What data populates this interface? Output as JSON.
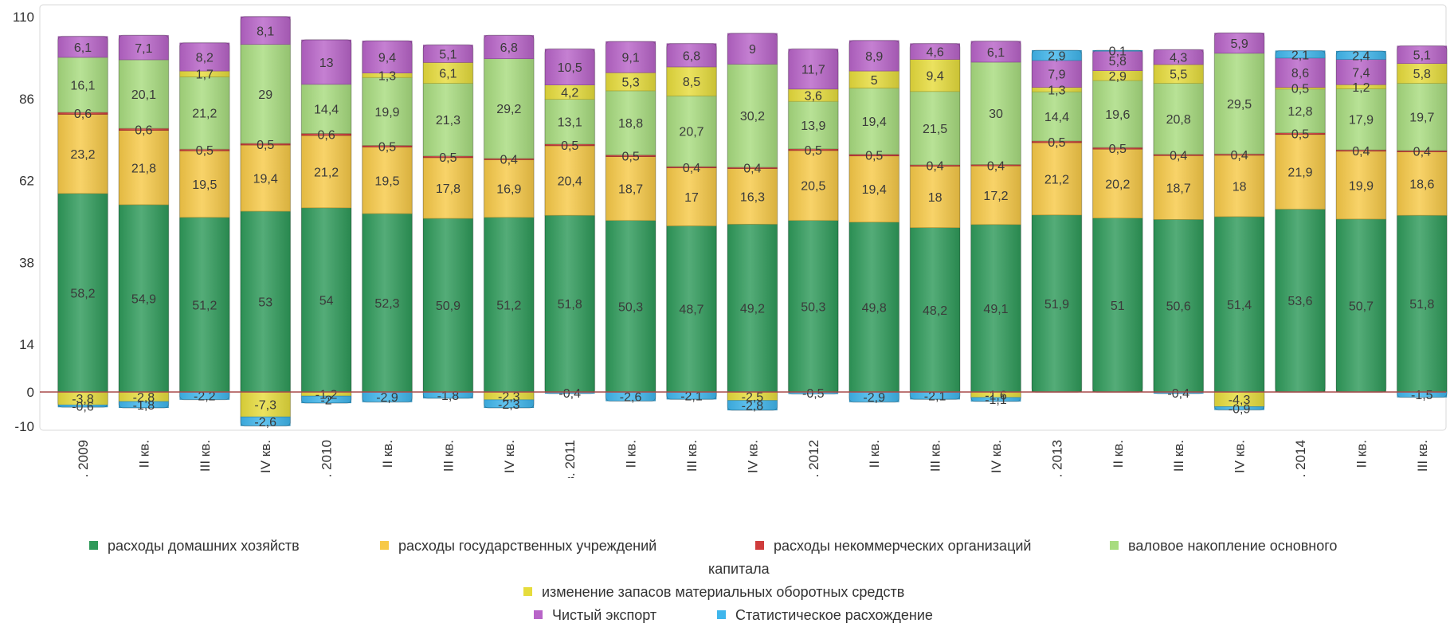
{
  "chart_data": {
    "type": "bar",
    "stacked": true,
    "categories": [
      "I кв. 2009",
      "II кв.",
      "III кв.",
      "IV кв.",
      "I кв. 2010",
      "II кв.",
      "III кв.",
      "IV кв.",
      "I кв. 2011",
      "II кв.",
      "III кв.",
      "IV кв.",
      "I кв. 2012",
      "II кв.",
      "III кв.",
      "IV кв.",
      "I кв. 2013",
      "II кв.",
      "III кв.",
      "IV кв.",
      "I кв. 2014",
      "II кв.",
      "III кв."
    ],
    "ylim": [
      -10,
      110
    ],
    "yticks": [
      -10,
      0,
      14,
      38,
      62,
      86,
      110
    ],
    "grid": false,
    "legend_position": "bottom",
    "series": [
      {
        "name": "расходы домашних хозяйств",
        "color": "#2f9a5a",
        "values": [
          58.2,
          54.9,
          51.2,
          53,
          54,
          52.3,
          50.9,
          51.2,
          51.8,
          50.3,
          48.7,
          49.2,
          50.3,
          49.8,
          48.2,
          49.1,
          51.9,
          51,
          50.6,
          51.4,
          53.6,
          50.7,
          51.8
        ]
      },
      {
        "name": "расходы государственных учреждений",
        "color": "#f7c948",
        "values": [
          23.2,
          21.8,
          19.5,
          19.4,
          21.2,
          19.5,
          17.8,
          16.9,
          20.4,
          18.7,
          17,
          16.3,
          20.5,
          19.4,
          18,
          17.2,
          21.2,
          20.2,
          18.7,
          18,
          21.9,
          19.9,
          18.6
        ]
      },
      {
        "name": "расходы некоммерческих организаций",
        "color": "#cf3c3c",
        "values": [
          0.6,
          0.6,
          0.5,
          0.5,
          0.6,
          0.5,
          0.5,
          0.4,
          0.5,
          0.5,
          0.4,
          0.4,
          0.5,
          0.5,
          0.4,
          0.4,
          0.5,
          0.5,
          0.4,
          0.4,
          0.5,
          0.4,
          0.4
        ]
      },
      {
        "name": "валовое накопление основного капитала",
        "color": "#a8dc7f",
        "values": [
          16.1,
          20.1,
          21.2,
          29,
          14.4,
          19.9,
          21.3,
          29.2,
          13.1,
          18.8,
          20.7,
          30.2,
          13.9,
          19.4,
          21.5,
          30,
          14.4,
          19.6,
          20.8,
          29.5,
          12.8,
          17.9,
          19.7
        ]
      },
      {
        "name": "изменение запасов материальных оборотных средств",
        "color": "#e6dc3c",
        "values": [
          -3.8,
          -2.8,
          1.7,
          -7.3,
          -1.2,
          1.3,
          6.1,
          -2.3,
          4.2,
          5.3,
          8.5,
          -2.5,
          3.6,
          5,
          9.4,
          -1.6,
          1.3,
          2.9,
          5.5,
          -4.3,
          0.5,
          1.2,
          5.8
        ]
      },
      {
        "name": "Чистый экспорт",
        "color": "#b864c8",
        "values": [
          6.1,
          7.1,
          8.2,
          8.1,
          13,
          9.4,
          5.1,
          6.8,
          10.5,
          9.1,
          6.8,
          9,
          11.7,
          8.9,
          4.6,
          6.1,
          7.9,
          5.8,
          4.3,
          5.9,
          8.6,
          7.4,
          5.1
        ]
      },
      {
        "name": "Статистическое расхождение",
        "color": "#3fb6ec",
        "values": [
          -0.6,
          -1.8,
          -2.2,
          -2.6,
          -2,
          -2.9,
          -1.8,
          -2.3,
          -0.4,
          -2.6,
          -2.1,
          -2.8,
          -0.5,
          -2.9,
          -2.1,
          -1.1,
          2.9,
          0.1,
          -0.4,
          -0.9,
          2.1,
          2.4,
          -1.5
        ]
      }
    ]
  },
  "legend": {
    "items": [
      "расходы домашних хозяйств",
      "расходы государственных учреждений",
      "расходы некоммерческих организаций",
      "валовое накопление основного",
      "изменение запасов материальных оборотных средств",
      "Чистый экспорт",
      "Статистическое расхождение"
    ],
    "continuation": "капитала"
  }
}
